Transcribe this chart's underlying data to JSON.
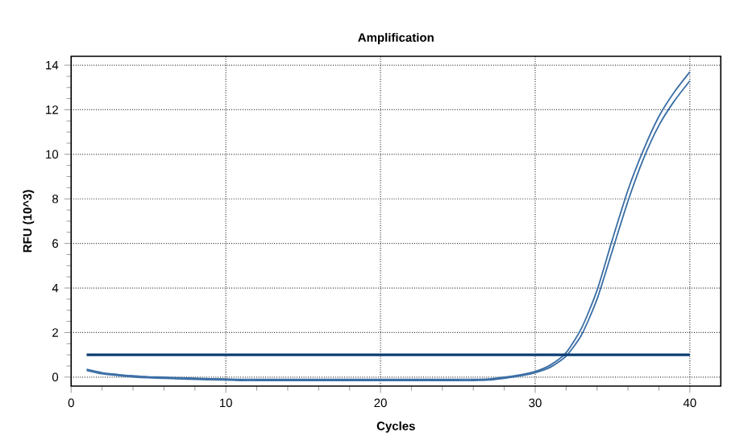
{
  "chart_data": {
    "type": "line",
    "title": "Amplification",
    "xlabel": "Cycles",
    "ylabel": "RFU (10^3)",
    "x": [
      1,
      2,
      3,
      4,
      5,
      6,
      7,
      8,
      9,
      10,
      11,
      12,
      13,
      14,
      15,
      16,
      17,
      18,
      19,
      20,
      21,
      22,
      23,
      24,
      25,
      26,
      27,
      28,
      29,
      30,
      31,
      32,
      33,
      34,
      35,
      36,
      37,
      38,
      39,
      40
    ],
    "series": [
      {
        "color": "#3a6ea5",
        "values": [
          0.35,
          0.2,
          0.12,
          0.06,
          0.02,
          0,
          -0.03,
          -0.05,
          -0.07,
          -0.08,
          -0.1,
          -0.1,
          -0.1,
          -0.1,
          -0.1,
          -0.1,
          -0.1,
          -0.1,
          -0.1,
          -0.1,
          -0.1,
          -0.1,
          -0.1,
          -0.1,
          -0.1,
          -0.1,
          -0.08,
          0,
          0.1,
          0.25,
          0.55,
          1.1,
          2.2,
          3.9,
          6.2,
          8.4,
          10.2,
          11.7,
          12.8,
          13.7
        ]
      },
      {
        "color": "#3a6ea5",
        "values": [
          0.3,
          0.15,
          0.07,
          0.01,
          -0.03,
          -0.05,
          -0.08,
          -0.1,
          -0.12,
          -0.13,
          -0.15,
          -0.15,
          -0.15,
          -0.15,
          -0.15,
          -0.15,
          -0.15,
          -0.15,
          -0.15,
          -0.15,
          -0.15,
          -0.15,
          -0.15,
          -0.15,
          -0.15,
          -0.15,
          -0.13,
          -0.05,
          0.05,
          0.2,
          0.45,
          0.95,
          1.9,
          3.5,
          5.7,
          7.9,
          9.8,
          11.3,
          12.4,
          13.3
        ]
      }
    ],
    "ref_lines": [
      {
        "axis": "y",
        "value": 1,
        "color": "#0a3d73"
      }
    ],
    "xlim": [
      0,
      42
    ],
    "ylim": [
      -0.4,
      14.4
    ],
    "xticks": [
      0,
      10,
      20,
      30,
      40
    ],
    "yticks": [
      0,
      2,
      4,
      6,
      8,
      10,
      12,
      14
    ],
    "grid": true
  }
}
